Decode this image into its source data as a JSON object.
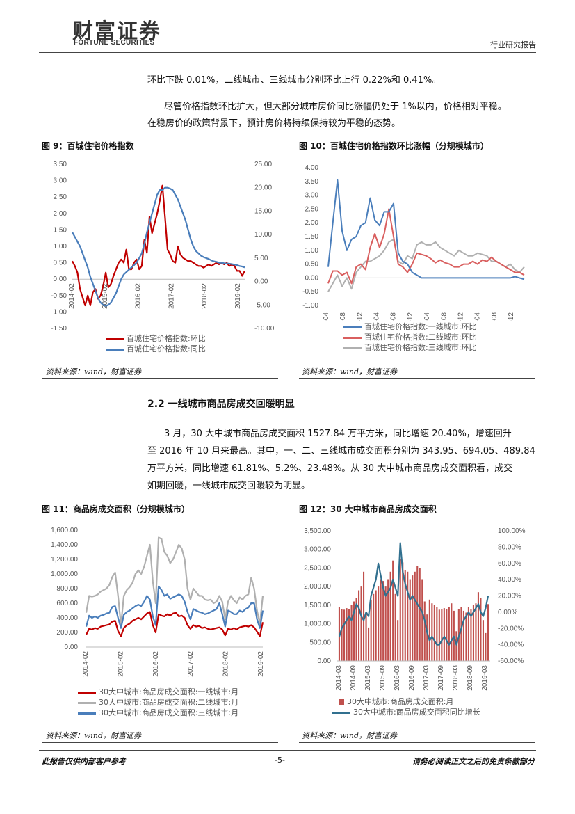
{
  "header": {
    "logo_cn": "财富证券",
    "logo_en": "FORTUNE SECURITIES",
    "report_type": "行业研究报告"
  },
  "body": {
    "para1": "环比下跌 0.01%，二线城市、三线城市分别环比上行 0.22%和 0.41%。",
    "para2_line1": "尽管价格指数环比扩大，但大部分城市房价同比涨幅仍处于 1%以内，价格相对平稳。",
    "para2_line2": "在稳房价的政策背景下，预计房价将持续保持较为平稳的态势。",
    "section_heading": "2.2 一线城市商品房成交回暖明显",
    "para3_line1": "3 月，30 大中城市商品房成交面积 1527.84 万平方米，同比增速 20.40%，增速回升",
    "para3_line2": "至 2016 年 10 月来最高。其中，一、二、三线城市成交面积分别为 343.95、694.05、489.84",
    "para3_line3": "万平方米，同比增速 61.81%、5.2%、23.48%。从 30 大中城市商品房成交面积看，成交",
    "para3_line4": "如期回暖，一线城市成交回暖较为明显。"
  },
  "figures": {
    "fig9_title": "图 9：百城住宅价格指数",
    "fig10_title": "图 10：百城住宅价格指数环比涨幅（分规模城市）",
    "fig11_title": "图 11：商品房成交面积（分规模城市）",
    "fig12_title": "图 12：30 大中城市商品房成交面积",
    "source": "资料来源：wind，财富证券"
  },
  "footer": {
    "left": "此报告仅供内部客户参考",
    "page": "-5-",
    "right": "请务必阅读正文之后的免责条款部分"
  },
  "chart_data": [
    {
      "id": "fig9",
      "type": "line",
      "x_ticks": [
        "2014-02",
        "2015-02",
        "2016-02",
        "2017-02",
        "2018-02",
        "2019-02"
      ],
      "y_left_ticks": [
        "3.50",
        "3.00",
        "2.50",
        "2.00",
        "1.50",
        "1.00",
        "0.50",
        "0.00",
        "-0.50",
        "-1.00",
        "-1.50"
      ],
      "y_right_ticks": [
        "25.00",
        "20.00",
        "15.00",
        "10.00",
        "5.00",
        "0.00",
        "-5.00",
        "-10.00"
      ],
      "ylim_left": [
        -1.5,
        3.5
      ],
      "ylim_right": [
        -10,
        25
      ],
      "series": [
        {
          "name": "百城住宅价格指数:环比",
          "axis": "left",
          "color": "#c00000",
          "values": [
            0.55,
            0.4,
            0.2,
            -0.3,
            -0.55,
            -0.8,
            -0.5,
            -0.8,
            -0.4,
            -0.3,
            -0.6,
            -0.5,
            -0.2,
            0.2,
            -0.25,
            -0.15,
            0.1,
            0.3,
            0.5,
            0.6,
            0.5,
            0.9,
            0.3,
            0.3,
            0.5,
            0.6,
            0.3,
            0.4,
            1.2,
            0.8,
            1.9,
            1.4,
            1.7,
            2.0,
            2.4,
            2.85,
            1.9,
            0.9,
            0.75,
            0.55,
            0.5,
            1.0,
            0.75,
            0.65,
            0.6,
            0.55,
            0.55,
            0.5,
            0.45,
            0.4,
            0.4,
            0.35,
            0.4,
            0.45,
            0.4,
            0.45,
            0.5,
            0.45,
            0.5,
            0.45,
            0.5,
            0.4,
            0.45,
            0.4,
            0.25,
            0.25,
            0.1,
            0.25
          ]
        },
        {
          "name": "百城住宅价格指数:同比",
          "axis": "right",
          "color": "#4a7ebb",
          "values": [
            10.5,
            9.5,
            8.5,
            7.5,
            6.0,
            4.5,
            3.0,
            1.0,
            -0.5,
            -2.0,
            -3.5,
            -4.5,
            -5.0,
            -5.2,
            -5.0,
            -4.5,
            -3.5,
            -2.5,
            -1.0,
            0.5,
            1.5,
            2.0,
            2.5,
            3.0,
            3.5,
            4.0,
            5.0,
            6.0,
            8.0,
            10.5,
            12.5,
            14.5,
            16.5,
            18.5,
            19.5,
            19.5,
            20.0,
            20.0,
            19.8,
            19.5,
            18.5,
            17.5,
            16.0,
            14.5,
            13.0,
            11.0,
            9.0,
            7.5,
            6.5,
            6.0,
            5.5,
            5.2,
            5.0,
            4.8,
            4.5,
            4.3,
            4.2,
            4.0,
            4.0,
            3.9,
            3.8,
            3.8,
            3.7,
            3.6,
            3.5,
            3.3,
            3.2,
            3.0
          ]
        }
      ]
    },
    {
      "id": "fig10",
      "type": "line",
      "x_ticks": [
        "2015-04",
        "2015-08",
        "2015-12",
        "2016-04",
        "2016-08",
        "2016-12",
        "2017-04",
        "2017-08",
        "2017-12",
        "2018-04",
        "2018-08",
        "2018-12"
      ],
      "y_ticks": [
        "4.00",
        "3.50",
        "3.00",
        "2.50",
        "2.00",
        "1.50",
        "1.00",
        "0.50",
        "0.00",
        "-0.50",
        "-1.00"
      ],
      "ylim": [
        -1,
        4
      ],
      "series": [
        {
          "name": "百城住宅价格指数:一线城市:环比",
          "color": "#4a7ebb",
          "values": [
            0.4,
            2.0,
            3.55,
            1.7,
            1.0,
            1.4,
            1.5,
            1.9,
            2.0,
            2.9,
            2.1,
            1.9,
            2.4,
            2.4,
            2.7,
            0.9,
            0.6,
            0.5,
            0.2,
            0.1,
            0.0,
            0.0,
            0.0,
            0.0,
            0.0,
            0.0,
            0.0,
            0.0,
            0.0,
            0.0,
            0.0,
            0.0,
            0.0,
            0.0,
            0.0,
            0.0,
            0.0,
            0.0,
            0.0,
            0.0,
            0.05,
            0.0,
            -0.05
          ]
        },
        {
          "name": "百城住宅价格指数:二线城市:环比",
          "color": "#d95f5f",
          "values": [
            -0.2,
            0.25,
            0.25,
            0.1,
            0.2,
            -0.2,
            0.4,
            0.5,
            0.3,
            1.1,
            1.6,
            1.1,
            1.6,
            2.5,
            1.5,
            0.5,
            0.4,
            0.2,
            0.5,
            0.9,
            0.85,
            0.8,
            0.7,
            0.55,
            0.65,
            0.55,
            0.5,
            0.4,
            0.4,
            0.5,
            0.5,
            0.6,
            0.5,
            0.65,
            0.6,
            0.75,
            0.6,
            0.5,
            0.4,
            0.3,
            0.2,
            0.2,
            0.1
          ]
        },
        {
          "name": "百城住宅价格指数:三线城市:环比",
          "color": "#b0b0b0",
          "values": [
            -0.5,
            -0.2,
            0.1,
            -0.3,
            0.0,
            -0.4,
            0.2,
            0.4,
            0.6,
            0.6,
            0.7,
            0.8,
            1.0,
            1.3,
            1.4,
            0.6,
            0.5,
            0.8,
            0.7,
            1.2,
            1.3,
            1.2,
            1.2,
            1.3,
            1.1,
            1.0,
            0.9,
            0.8,
            1.0,
            0.9,
            0.8,
            0.8,
            0.9,
            0.85,
            0.8,
            0.6,
            0.6,
            0.5,
            0.4,
            0.5,
            0.3,
            0.2,
            0.4
          ]
        }
      ]
    },
    {
      "id": "fig11",
      "type": "line",
      "x_ticks": [
        "2014-02",
        "2015-02",
        "2016-02",
        "2017-02",
        "2018-02",
        "2019-02"
      ],
      "y_ticks": [
        "1,600.00",
        "1,400.00",
        "1,200.00",
        "1,000.00",
        "800.00",
        "600.00",
        "400.00",
        "200.00",
        "0.00"
      ],
      "ylim": [
        0,
        1600
      ],
      "series": [
        {
          "name": "30大中城市:商品房成交面积:一线城市:月",
          "color": "#c00000",
          "values": [
            170,
            250,
            240,
            260,
            250,
            280,
            290,
            300,
            310,
            350,
            360,
            220,
            150,
            260,
            300,
            320,
            360,
            380,
            400,
            380,
            420,
            460,
            480,
            300,
            200,
            450,
            430,
            420,
            450,
            430,
            460,
            470,
            420,
            430,
            400,
            300,
            250,
            300,
            280,
            290,
            260,
            270,
            250,
            240,
            250,
            260,
            270,
            240,
            160,
            250,
            240,
            260,
            240,
            270,
            280,
            290,
            280,
            300,
            270,
            210,
            150,
            340
          ]
        },
        {
          "name": "30大中城市:商品房成交面积:二线城市:月",
          "color": "#b0b0b0",
          "values": [
            470,
            700,
            690,
            700,
            720,
            760,
            780,
            800,
            850,
            960,
            1020,
            700,
            300,
            700,
            780,
            820,
            880,
            1000,
            1050,
            1000,
            1100,
            1250,
            1400,
            900,
            600,
            1500,
            1480,
            1300,
            1250,
            1150,
            1200,
            1300,
            1400,
            1350,
            1200,
            800,
            650,
            800,
            750,
            700,
            700,
            650,
            640,
            650,
            600,
            620,
            700,
            620,
            380,
            620,
            700,
            640,
            600,
            680,
            650,
            700,
            720,
            950,
            800,
            500,
            320,
            700
          ]
        },
        {
          "name": "30大中城市:商品房成交面积:三线城市:月",
          "color": "#4a7ebb",
          "values": [
            280,
            430,
            400,
            420,
            400,
            430,
            440,
            460,
            470,
            550,
            560,
            400,
            260,
            440,
            480,
            500,
            530,
            560,
            580,
            560,
            620,
            700,
            650,
            420,
            300,
            830,
            780,
            700,
            720,
            660,
            680,
            700,
            720,
            700,
            620,
            480,
            380,
            520,
            500,
            480,
            470,
            450,
            460,
            480,
            500,
            520,
            600,
            450,
            280,
            500,
            480,
            450,
            450,
            500,
            480,
            520,
            540,
            600,
            600,
            380,
            260,
            500
          ]
        }
      ]
    },
    {
      "id": "fig12",
      "type": "bar",
      "x_ticks": [
        "2014-03",
        "2014-09",
        "2015-03",
        "2015-09",
        "2016-03",
        "2016-09",
        "2017-03",
        "2017-09",
        "2018-03",
        "2018-09",
        "2019-03"
      ],
      "y_left_ticks": [
        "3,500.00",
        "3,000.00",
        "2,500.00",
        "2,000.00",
        "1,500.00",
        "1,000.00",
        "500.00",
        "0.00"
      ],
      "y_right_ticks": [
        "100.00%",
        "80.00%",
        "60.00%",
        "40.00%",
        "20.00%",
        "0.00%",
        "-20.00%",
        "-40.00%",
        "-60.00%"
      ],
      "ylim_left": [
        0,
        3500
      ],
      "ylim_right": [
        -60,
        100
      ],
      "series": [
        {
          "name": "30大中城市:商品房成交面积:月",
          "axis": "left",
          "color": "#c0504d",
          "type": "bar",
          "values": [
            1450,
            1400,
            1380,
            1420,
            1400,
            1500,
            1600,
            1700,
            1900,
            2000,
            2400,
            1300,
            900,
            1650,
            1800,
            1900,
            2000,
            2200,
            2150,
            2000,
            2200,
            2400,
            2700,
            1800,
            1100,
            2750,
            2650,
            2450,
            2400,
            2200,
            2300,
            2400,
            2550,
            2500,
            2200,
            1600,
            1250,
            1650,
            1550,
            1500,
            1450,
            1380,
            1400,
            1420,
            1400,
            1450,
            1550,
            1350,
            800,
            1400,
            1450,
            1350,
            1300,
            1450,
            1400,
            1500,
            1550,
            1850,
            1700,
            1100,
            750,
            1530
          ]
        },
        {
          "name": "30大中城市:商品房成交面积同比增长",
          "axis": "right",
          "color": "#31708f",
          "type": "line",
          "values": [
            -30,
            -20,
            -15,
            -10,
            -5,
            -10,
            0,
            10,
            5,
            -5,
            -10,
            0,
            -5,
            20,
            30,
            40,
            60,
            45,
            30,
            20,
            25,
            30,
            40,
            30,
            20,
            85,
            50,
            35,
            25,
            15,
            20,
            15,
            10,
            5,
            0,
            -10,
            -25,
            -35,
            -30,
            -35,
            -40,
            -40,
            -35,
            -30,
            -35,
            -40,
            -35,
            -30,
            -40,
            -30,
            -20,
            -10,
            -5,
            0,
            -5,
            0,
            5,
            10,
            0,
            -5,
            5,
            20
          ]
        }
      ]
    }
  ]
}
